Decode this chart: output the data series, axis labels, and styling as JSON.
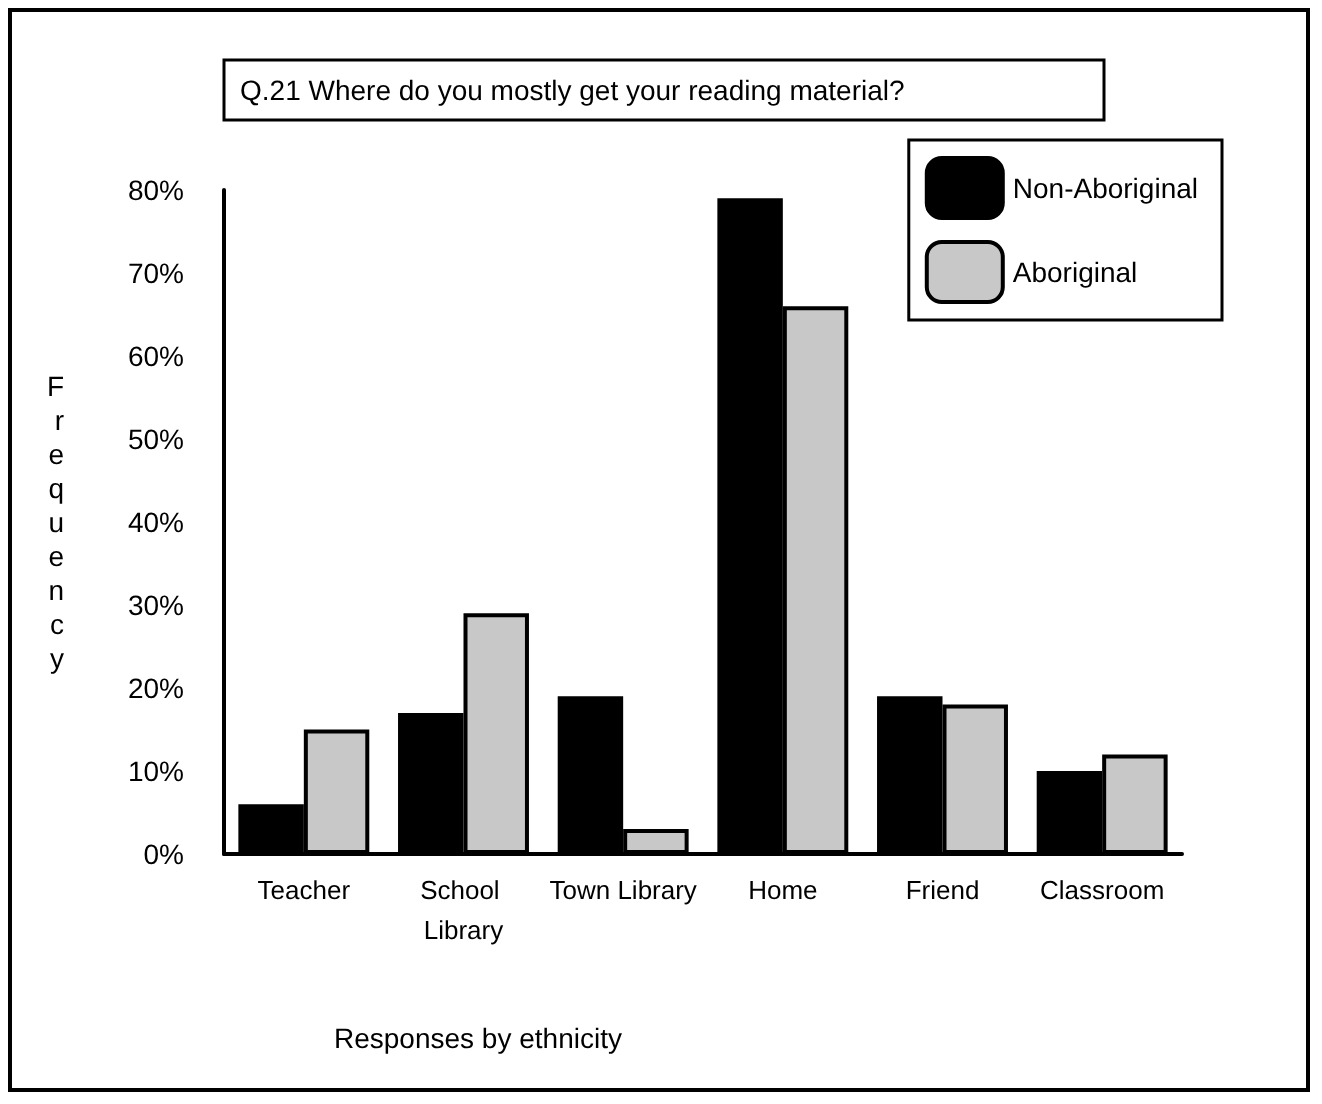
{
  "chart_data": {
    "type": "bar",
    "title": "Q.21 Where do you mostly get your reading material?",
    "xlabel": "Responses by ethnicity",
    "ylabel": "Frequency",
    "categories": [
      "Teacher",
      "School Library",
      "Town Library",
      "Home",
      "Friend",
      "Classroom"
    ],
    "series": [
      {
        "name": "Non-Aboriginal",
        "color": "#000000",
        "values": [
          6,
          17,
          19,
          79,
          19,
          10
        ]
      },
      {
        "name": "Aboriginal",
        "color": "#c8c8c8",
        "values": [
          15,
          29,
          3,
          66,
          18,
          12
        ]
      }
    ],
    "ylim": [
      0,
      80
    ],
    "yticks": [
      {
        "value": 0,
        "label": "0%"
      },
      {
        "value": 10,
        "label": "10%"
      },
      {
        "value": 20,
        "label": "20%"
      },
      {
        "value": 30,
        "label": "30%"
      },
      {
        "value": 40,
        "label": "40%"
      },
      {
        "value": 50,
        "label": "50%"
      },
      {
        "value": 60,
        "label": "60%"
      },
      {
        "value": 70,
        "label": "70%"
      },
      {
        "value": 80,
        "label": "80%"
      }
    ],
    "grid": false,
    "legend": "top right"
  }
}
